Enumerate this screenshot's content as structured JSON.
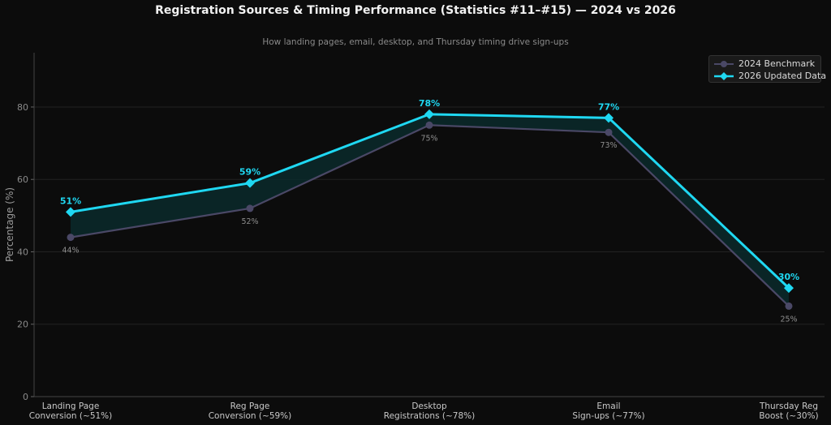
{
  "colors": {
    "background": "#0c0c0c",
    "series_2024": "#4a4866",
    "series_2026": "#1fd8f2",
    "fill_between": "#0b2a2c",
    "grid": "#222222",
    "axis": "#444444"
  },
  "chart_data": {
    "type": "line",
    "title": "Registration Sources & Timing Performance (Statistics #11–#15) — 2024 vs 2026",
    "subtitle": "How landing pages, email, desktop, and Thursday timing drive sign-ups",
    "xlabel": "",
    "ylabel": "Percentage (%)",
    "ylim": [
      0,
      95
    ],
    "yticks": [
      0,
      20,
      40,
      60,
      80
    ],
    "grid": true,
    "legend_position": "top-right",
    "categories": [
      [
        "Landing Page",
        "Conversion (~51%)"
      ],
      [
        "Reg Page",
        "Conversion (~59%)"
      ],
      [
        "Desktop",
        "Registrations (~78%)"
      ],
      [
        "Email",
        "Sign-ups (~77%)"
      ],
      [
        "Thursday Reg",
        "Boost (~30%)"
      ]
    ],
    "series": [
      {
        "name": "2024 Benchmark",
        "values": [
          44,
          52,
          75,
          73,
          25
        ],
        "labels": [
          "44%",
          "52%",
          "75%",
          "73%",
          "25%"
        ],
        "marker": "circle"
      },
      {
        "name": "2026 Updated Data",
        "values": [
          51,
          59,
          78,
          77,
          30
        ],
        "labels": [
          "51%",
          "59%",
          "78%",
          "77%",
          "30%"
        ],
        "marker": "diamond"
      }
    ]
  }
}
